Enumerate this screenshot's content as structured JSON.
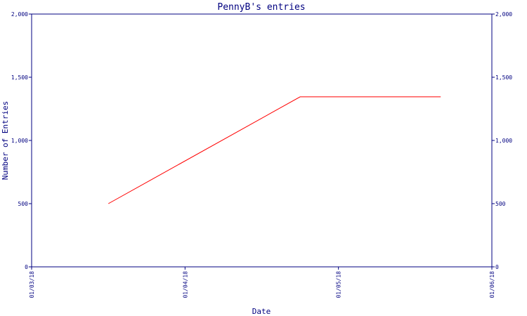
{
  "chart_data": {
    "type": "line",
    "title": "PennyB's entries",
    "xlabel": "Date",
    "ylabel": "Number of Entries",
    "ylim": [
      0,
      2000
    ],
    "y_ticks": [
      0,
      500,
      1000,
      1500,
      2000
    ],
    "y_tick_labels": [
      "0",
      "500",
      "1,000",
      "1,500",
      "2,000"
    ],
    "x_ticks": [
      "01/03/18",
      "01/04/18",
      "01/05/18",
      "01/06/18"
    ],
    "xlim": [
      "01/03/18",
      "01/06/18"
    ],
    "grid": false,
    "colors": {
      "axis": "#000080",
      "line": "#ff0000"
    },
    "series": [
      {
        "x": [
          "01/03/18 12:00",
          "01/04/18 18:00",
          "01/05/18 16:00"
        ],
        "y": [
          500,
          1345,
          1345
        ]
      }
    ]
  }
}
